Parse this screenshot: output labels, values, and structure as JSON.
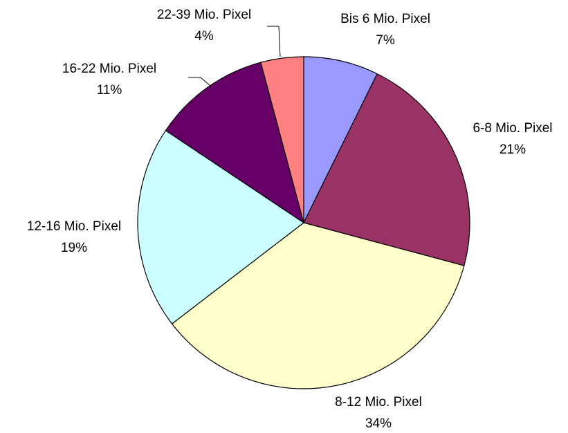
{
  "chart_data": {
    "type": "pie",
    "categories": [
      "Bis 6 Mio. Pixel",
      "6-8 Mio. Pixel",
      "8-12 Mio. Pixel",
      "12-16 Mio. Pixel",
      "16-22 Mio. Pixel",
      "22-39 Mio. Pixel"
    ],
    "values": [
      7,
      21,
      34,
      19,
      11,
      4
    ],
    "value_labels": [
      "7%",
      "21%",
      "34%",
      "19%",
      "11%",
      "4%"
    ],
    "colors": [
      "#9999ff",
      "#993366",
      "#ffffcc",
      "#ccffff",
      "#660066",
      "#ff8080"
    ]
  }
}
